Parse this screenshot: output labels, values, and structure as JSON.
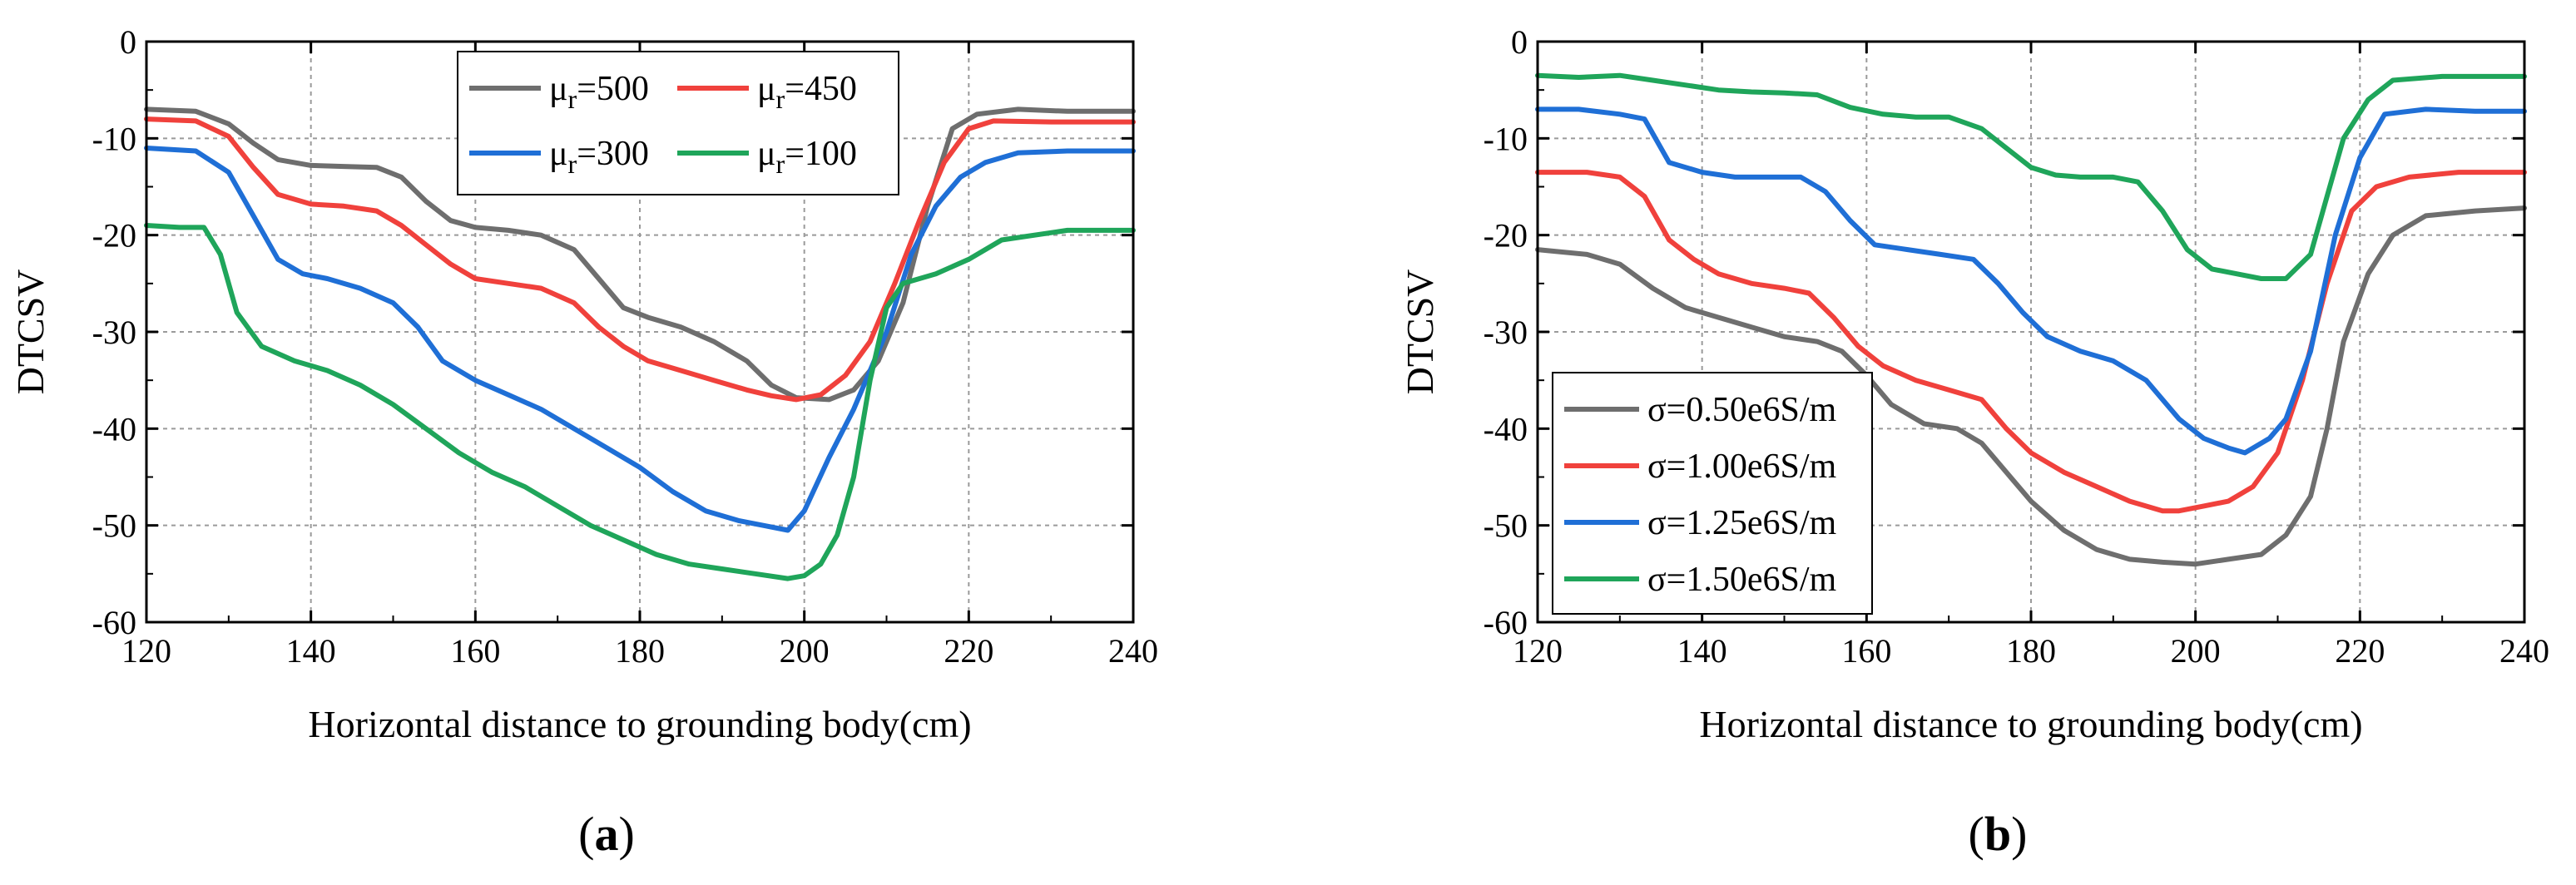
{
  "colors": {
    "gray": "#6e6e6e",
    "red": "#f0413c",
    "blue": "#1f6fd6",
    "green": "#1fa55a"
  },
  "chart_data": [
    {
      "panel_label": "a",
      "type": "line",
      "xlabel": "Horizontal distance to grounding body(cm)",
      "ylabel": "DTCSV",
      "xlim": [
        120,
        240
      ],
      "ylim": [
        -60,
        0
      ],
      "xticks": [
        120,
        140,
        160,
        180,
        200,
        220,
        240
      ],
      "yticks": [
        0,
        -10,
        -20,
        -30,
        -40,
        -50,
        -60
      ],
      "grid": true,
      "legend": "top-center, 2 columns",
      "series": [
        {
          "name_base": "μ",
          "name_sub": "r",
          "name_tail": "=500",
          "color": "gray",
          "x": [
            120,
            126,
            130,
            133,
            136,
            140,
            144,
            148,
            151,
            154,
            157,
            160,
            164,
            168,
            172,
            175,
            178,
            181,
            185,
            189,
            193,
            196,
            199,
            203,
            206,
            209,
            212,
            215,
            218,
            221,
            226,
            232,
            240
          ],
          "y": [
            -7,
            -7.2,
            -8.5,
            -10.5,
            -12.2,
            -12.8,
            -12.9,
            -13,
            -14,
            -16.5,
            -18.5,
            -19.2,
            -19.5,
            -20,
            -21.5,
            -24.5,
            -27.5,
            -28.5,
            -29.5,
            -31,
            -33,
            -35.5,
            -36.8,
            -37,
            -36,
            -33,
            -27,
            -17,
            -9,
            -7.5,
            -7,
            -7.2,
            -7.2
          ]
        },
        {
          "name_base": "μ",
          "name_sub": "r",
          "name_tail": "=450",
          "color": "red",
          "x": [
            120,
            126,
            130,
            133,
            136,
            140,
            144,
            148,
            151,
            154,
            157,
            160,
            164,
            168,
            172,
            175,
            178,
            181,
            185,
            189,
            193,
            196,
            199,
            202,
            205,
            208,
            211,
            214,
            217,
            220,
            223,
            230,
            240
          ],
          "y": [
            -8,
            -8.2,
            -9.8,
            -13,
            -15.8,
            -16.8,
            -17,
            -17.5,
            -19,
            -21,
            -23,
            -24.5,
            -25,
            -25.5,
            -27,
            -29.5,
            -31.5,
            -33,
            -34,
            -35,
            -36,
            -36.6,
            -37,
            -36.5,
            -34.5,
            -31,
            -25,
            -18.5,
            -12.5,
            -9,
            -8.2,
            -8.3,
            -8.3
          ]
        },
        {
          "name_base": "μ",
          "name_sub": "r",
          "name_tail": "=300",
          "color": "blue",
          "x": [
            120,
            126,
            130,
            133,
            136,
            139,
            142,
            146,
            150,
            153,
            156,
            160,
            164,
            168,
            172,
            176,
            180,
            184,
            188,
            192,
            195,
            198,
            200,
            203,
            206,
            210,
            213,
            216,
            219,
            222,
            226,
            232,
            240
          ],
          "y": [
            -11,
            -11.3,
            -13.5,
            -18,
            -22.5,
            -24,
            -24.5,
            -25.5,
            -27,
            -29.5,
            -33,
            -35,
            -36.5,
            -38,
            -40,
            -42,
            -44,
            -46.5,
            -48.5,
            -49.5,
            -50,
            -50.5,
            -48.5,
            -43,
            -38,
            -30,
            -22,
            -17,
            -14,
            -12.5,
            -11.5,
            -11.3,
            -11.3
          ]
        },
        {
          "name_base": "μ",
          "name_sub": "r",
          "name_tail": "=100",
          "color": "green",
          "x": [
            120,
            124,
            127,
            129,
            131,
            134,
            138,
            142,
            146,
            150,
            154,
            158,
            162,
            166,
            170,
            174,
            178,
            182,
            186,
            190,
            194,
            198,
            200,
            202,
            204,
            206,
            208,
            210,
            212,
            216,
            220,
            224,
            232,
            240
          ],
          "y": [
            -19,
            -19.2,
            -19.2,
            -22,
            -28,
            -31.5,
            -33,
            -34,
            -35.5,
            -37.5,
            -40,
            -42.5,
            -44.5,
            -46,
            -48,
            -50,
            -51.5,
            -53,
            -54,
            -54.5,
            -55,
            -55.5,
            -55.2,
            -54,
            -51,
            -45,
            -35,
            -27.5,
            -25,
            -24,
            -22.5,
            -20.5,
            -19.5,
            -19.5
          ]
        }
      ]
    },
    {
      "panel_label": "b",
      "type": "line",
      "xlabel": "Horizontal distance to grounding body(cm)",
      "ylabel": "DTCSV",
      "xlim": [
        120,
        240
      ],
      "ylim": [
        -60,
        0
      ],
      "xticks": [
        120,
        140,
        160,
        180,
        200,
        220,
        240
      ],
      "yticks": [
        0,
        -10,
        -20,
        -30,
        -40,
        -50,
        -60
      ],
      "grid": true,
      "legend": "bottom-left",
      "series": [
        {
          "name": "σ=0.50e6S/m",
          "color": "gray",
          "x": [
            120,
            126,
            130,
            134,
            138,
            142,
            146,
            150,
            154,
            157,
            160,
            163,
            167,
            171,
            174,
            177,
            180,
            184,
            188,
            192,
            196,
            200,
            204,
            208,
            211,
            214,
            216,
            218,
            221,
            224,
            228,
            234,
            240
          ],
          "y": [
            -21.5,
            -22,
            -23,
            -25.5,
            -27.5,
            -28.5,
            -29.5,
            -30.5,
            -31,
            -32,
            -34.5,
            -37.5,
            -39.5,
            -40,
            -41.5,
            -44.5,
            -47.5,
            -50.5,
            -52.5,
            -53.5,
            -53.8,
            -54,
            -53.5,
            -53,
            -51,
            -47,
            -40,
            -31,
            -24,
            -20,
            -18,
            -17.5,
            -17.2
          ]
        },
        {
          "name": "σ=1.00e6S/m",
          "color": "red",
          "x": [
            120,
            126,
            130,
            133,
            136,
            139,
            142,
            146,
            150,
            153,
            156,
            159,
            162,
            166,
            170,
            174,
            177,
            180,
            184,
            188,
            192,
            196,
            198,
            201,
            204,
            207,
            210,
            213,
            216,
            219,
            222,
            226,
            232,
            240
          ],
          "y": [
            -13.5,
            -13.5,
            -14,
            -16,
            -20.5,
            -22.5,
            -24,
            -25,
            -25.5,
            -26,
            -28.5,
            -31.5,
            -33.5,
            -35,
            -36,
            -37,
            -40,
            -42.5,
            -44.5,
            -46,
            -47.5,
            -48.5,
            -48.5,
            -48,
            -47.5,
            -46,
            -42.5,
            -35,
            -25,
            -17.5,
            -15,
            -14,
            -13.5,
            -13.5
          ]
        },
        {
          "name": "σ=1.25e6S/m",
          "color": "blue",
          "x": [
            120,
            125,
            130,
            133,
            136,
            140,
            144,
            148,
            152,
            155,
            158,
            161,
            165,
            169,
            173,
            176,
            179,
            182,
            186,
            190,
            194,
            198,
            201,
            204,
            206,
            209,
            211,
            214,
            217,
            220,
            223,
            228,
            234,
            240
          ],
          "y": [
            -7,
            -7,
            -7.5,
            -8,
            -12.5,
            -13.5,
            -14,
            -14,
            -14,
            -15.5,
            -18.5,
            -21,
            -21.5,
            -22,
            -22.5,
            -25,
            -28,
            -30.5,
            -32,
            -33,
            -35,
            -39,
            -41,
            -42,
            -42.5,
            -41,
            -39,
            -32,
            -20,
            -12,
            -7.5,
            -7,
            -7.2,
            -7.2
          ]
        },
        {
          "name": "σ=1.50e6S/m",
          "color": "green",
          "x": [
            120,
            125,
            130,
            134,
            138,
            142,
            146,
            150,
            154,
            158,
            162,
            166,
            170,
            174,
            177,
            180,
            183,
            186,
            190,
            193,
            196,
            199,
            202,
            205,
            208,
            211,
            214,
            216,
            218,
            221,
            224,
            230,
            240
          ],
          "y": [
            -3.5,
            -3.7,
            -3.5,
            -4,
            -4.5,
            -5,
            -5.2,
            -5.3,
            -5.5,
            -6.8,
            -7.5,
            -7.8,
            -7.8,
            -9,
            -11,
            -13,
            -13.8,
            -14,
            -14,
            -14.5,
            -17.5,
            -21.5,
            -23.5,
            -24,
            -24.5,
            -24.5,
            -22,
            -16,
            -10,
            -6,
            -4,
            -3.6,
            -3.6
          ]
        }
      ]
    }
  ]
}
